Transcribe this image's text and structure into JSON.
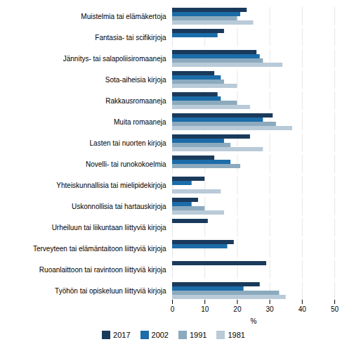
{
  "chart_data": {
    "type": "bar",
    "orientation": "horizontal",
    "categories": [
      "Muistelmia tai elämäkertoja",
      "Fantasia- tai scifikirjoja",
      "Jännitys- tai salapoliisiromaaneja",
      "Sota-aiheisia kirjoja",
      "Rakkausromaaneja",
      "Muita romaaneja",
      "Lasten tai nuorten kirjoja",
      "Novelli- tai runokokoelmia",
      "Yhteiskunnallisia tai mielipidekirjoja",
      "Uskonnollisia tai hartauskirjoja",
      "Urheiluun tai liikuntaan liittyviä kirjoja",
      "Terveyteen tai elämäntaitoon liittyviä kirjoja",
      "Ruoanlaittoon tai ravintoon liittyviä kirjoja",
      "Työhön tai opiskeluun liittyviä kirjoja"
    ],
    "series": [
      {
        "name": "2017",
        "color": "#1a3a5c",
        "values": [
          23,
          16,
          26,
          13,
          14,
          31,
          24,
          13,
          10,
          8,
          11,
          19,
          29,
          27
        ]
      },
      {
        "name": "2002",
        "color": "#1b6ca8",
        "values": [
          21,
          14,
          27,
          15,
          15,
          28,
          16,
          18,
          6,
          6,
          null,
          17,
          null,
          22
        ]
      },
      {
        "name": "1991",
        "color": "#8caabe",
        "values": [
          20,
          null,
          28,
          16,
          20,
          32,
          18,
          21,
          null,
          10,
          null,
          null,
          null,
          33
        ]
      },
      {
        "name": "1981",
        "color": "#b9cad8",
        "values": [
          25,
          null,
          34,
          20,
          24,
          37,
          28,
          null,
          15,
          16,
          null,
          null,
          null,
          35
        ]
      }
    ],
    "xlim": [
      0,
      50
    ],
    "xticks": [
      0,
      10,
      20,
      30,
      40,
      50
    ],
    "xlabel": "%",
    "grid": true,
    "legend": "bottom"
  }
}
